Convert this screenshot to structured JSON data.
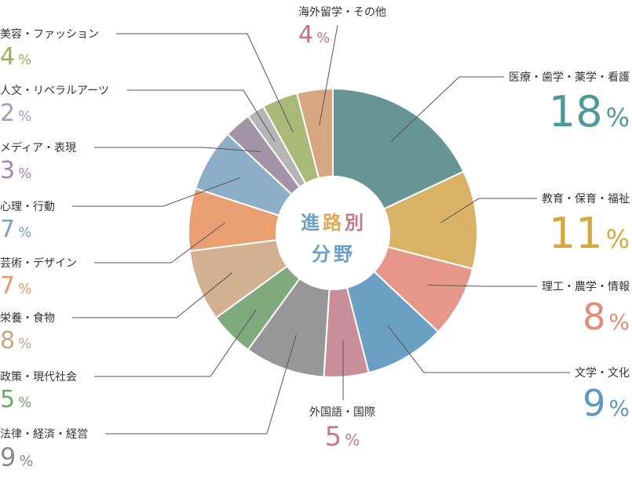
{
  "chart_data": {
    "type": "pie",
    "title_chars": [
      {
        "char": "進",
        "color": "#6aa0c8"
      },
      {
        "char": "路",
        "color": "#e0a85a"
      },
      {
        "char": "別",
        "color": "#c07888"
      }
    ],
    "subtitle_chars": [
      {
        "char": "分",
        "color": "#6aa0c8"
      },
      {
        "char": "野",
        "color": "#6aa0c8"
      }
    ],
    "percent_sign": "%",
    "slices": [
      {
        "label": "医療・歯学・薬学・看護",
        "value": 18,
        "display": "18",
        "color": "#679594",
        "text_color": "#4e9a9a"
      },
      {
        "label": "教育・保育・福祉",
        "value": 11,
        "display": "11",
        "color": "#d9b265",
        "text_color": "#d4a83c"
      },
      {
        "label": "理工・農学・情報",
        "value": 8,
        "display": "8",
        "color": "#e79789",
        "text_color": "#e58a78"
      },
      {
        "label": "文学・文化",
        "value": 9,
        "display": "9",
        "color": "#6b9fc4",
        "text_color": "#5b98c4"
      },
      {
        "label": "外国語・国際",
        "value": 5,
        "display": "5",
        "color": "#c88e99",
        "text_color": "#c87890"
      },
      {
        "label": "法律・経済・経営",
        "value": 9,
        "display": "9",
        "color": "#979797",
        "text_color": "#8a8a8a"
      },
      {
        "label": "政策・現代社会",
        "value": 5,
        "display": "5",
        "color": "#7eaa7d",
        "text_color": "#6aa86a"
      },
      {
        "label": "栄養・食物",
        "value": 8,
        "display": "8",
        "color": "#d2b092",
        "text_color": "#c9a582"
      },
      {
        "label": "芸術・デザイン",
        "value": 7,
        "display": "7",
        "color": "#ea9f72",
        "text_color": "#e89868"
      },
      {
        "label": "心理・行動",
        "value": 7,
        "display": "7",
        "color": "#8caec6",
        "text_color": "#7aa4c4"
      },
      {
        "label": "メディア・表現",
        "value": 3,
        "display": "3",
        "color": "#a393a7",
        "text_color": "#a586b0"
      },
      {
        "label": "人文・リベラルアーツ",
        "value": 2,
        "display": "2",
        "color": "#b5b5b5",
        "text_color": "#a39ac0"
      },
      {
        "label": "美容・ファッション",
        "value": 4,
        "display": "4",
        "color": "#a9b978",
        "text_color": "#98b25a"
      },
      {
        "label": "海外留学・その他",
        "value": 4,
        "display": "4",
        "color": "#d8a581",
        "text_color": "#c8708a"
      }
    ]
  }
}
